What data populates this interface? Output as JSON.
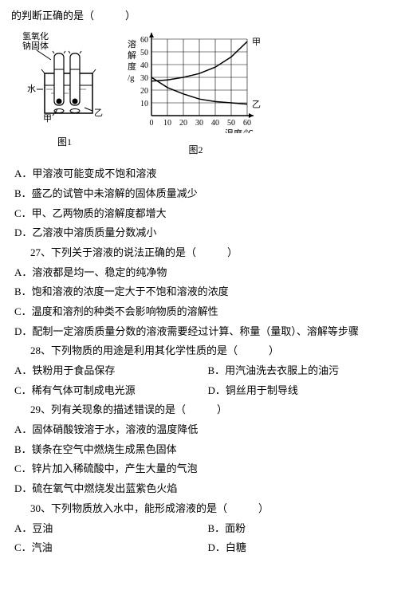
{
  "topLine": "的判断正确的是（　　　）",
  "figure1": {
    "label": "图1",
    "naoh_label": "氢氧化\n钠固体",
    "water_label": "水",
    "left_label": "甲",
    "right_label": "乙",
    "stroke": "#000000",
    "fill": "#ffffff"
  },
  "figure2": {
    "label": "图2",
    "y_axis_label": "溶\n解\n度\n/g",
    "x_axis_label": "温度/℃",
    "series1_label": "甲",
    "series2_label": "乙",
    "x_ticks": [
      "0",
      "10",
      "20",
      "30",
      "40",
      "50",
      "60"
    ],
    "y_ticks": [
      "10",
      "20",
      "30",
      "40",
      "50",
      "60"
    ],
    "xlim": [
      0,
      60
    ],
    "ylim": [
      0,
      60
    ],
    "grid_color": "#000000",
    "background": "#ffffff",
    "series1": {
      "points": [
        [
          0,
          27
        ],
        [
          10,
          28
        ],
        [
          20,
          30
        ],
        [
          30,
          33
        ],
        [
          40,
          38
        ],
        [
          50,
          46
        ],
        [
          60,
          58
        ]
      ],
      "color": "#000000",
      "width": 1.5
    },
    "series2": {
      "points": [
        [
          0,
          30
        ],
        [
          10,
          22
        ],
        [
          20,
          17
        ],
        [
          30,
          13
        ],
        [
          40,
          11
        ],
        [
          50,
          10
        ],
        [
          60,
          9
        ]
      ],
      "color": "#000000",
      "width": 1.5
    }
  },
  "q26": {
    "A": "A．甲溶液可能变成不饱和溶液",
    "B": "B．盛乙的试管中未溶解的固体质量减少",
    "C": "C．甲、乙两物质的溶解度都增大",
    "D": "D．乙溶液中溶质质量分数减小"
  },
  "q27": {
    "stem": "27、下列关于溶液的说法正确的是（　　　）",
    "A": "A．溶液都是均一、稳定的纯净物",
    "B": "B．饱和溶液的浓度一定大于不饱和溶液的浓度",
    "C": "C．温度和溶剂的种类不会影响物质的溶解性",
    "D": "D．配制一定溶质质量分数的溶液需要经过计算、称量（量取）、溶解等步骤"
  },
  "q28": {
    "stem": "28、下列物质的用途是利用其化学性质的是（　　　）",
    "A": "A．铁粉用于食品保存",
    "B": "B．用汽油洗去衣服上的油污",
    "C": "C．稀有气体可制成电光源",
    "D": "D．铜丝用于制导线"
  },
  "q29": {
    "stem": "29、列有关现象的描述错误的是（　　　）",
    "A": "A．固体硝酸铵溶于水，溶液的温度降低",
    "B": "B．镁条在空气中燃烧生成黑色固体",
    "C": "C．锌片加入稀硫酸中，产生大量的气泡",
    "D": "D．硫在氧气中燃烧发出蓝紫色火焰"
  },
  "q30": {
    "stem": "30、下列物质放入水中，能形成溶液的是（　　　）",
    "A": "A．豆油",
    "B": "B．面粉",
    "C": "C．汽油",
    "D": "D．白糖"
  }
}
